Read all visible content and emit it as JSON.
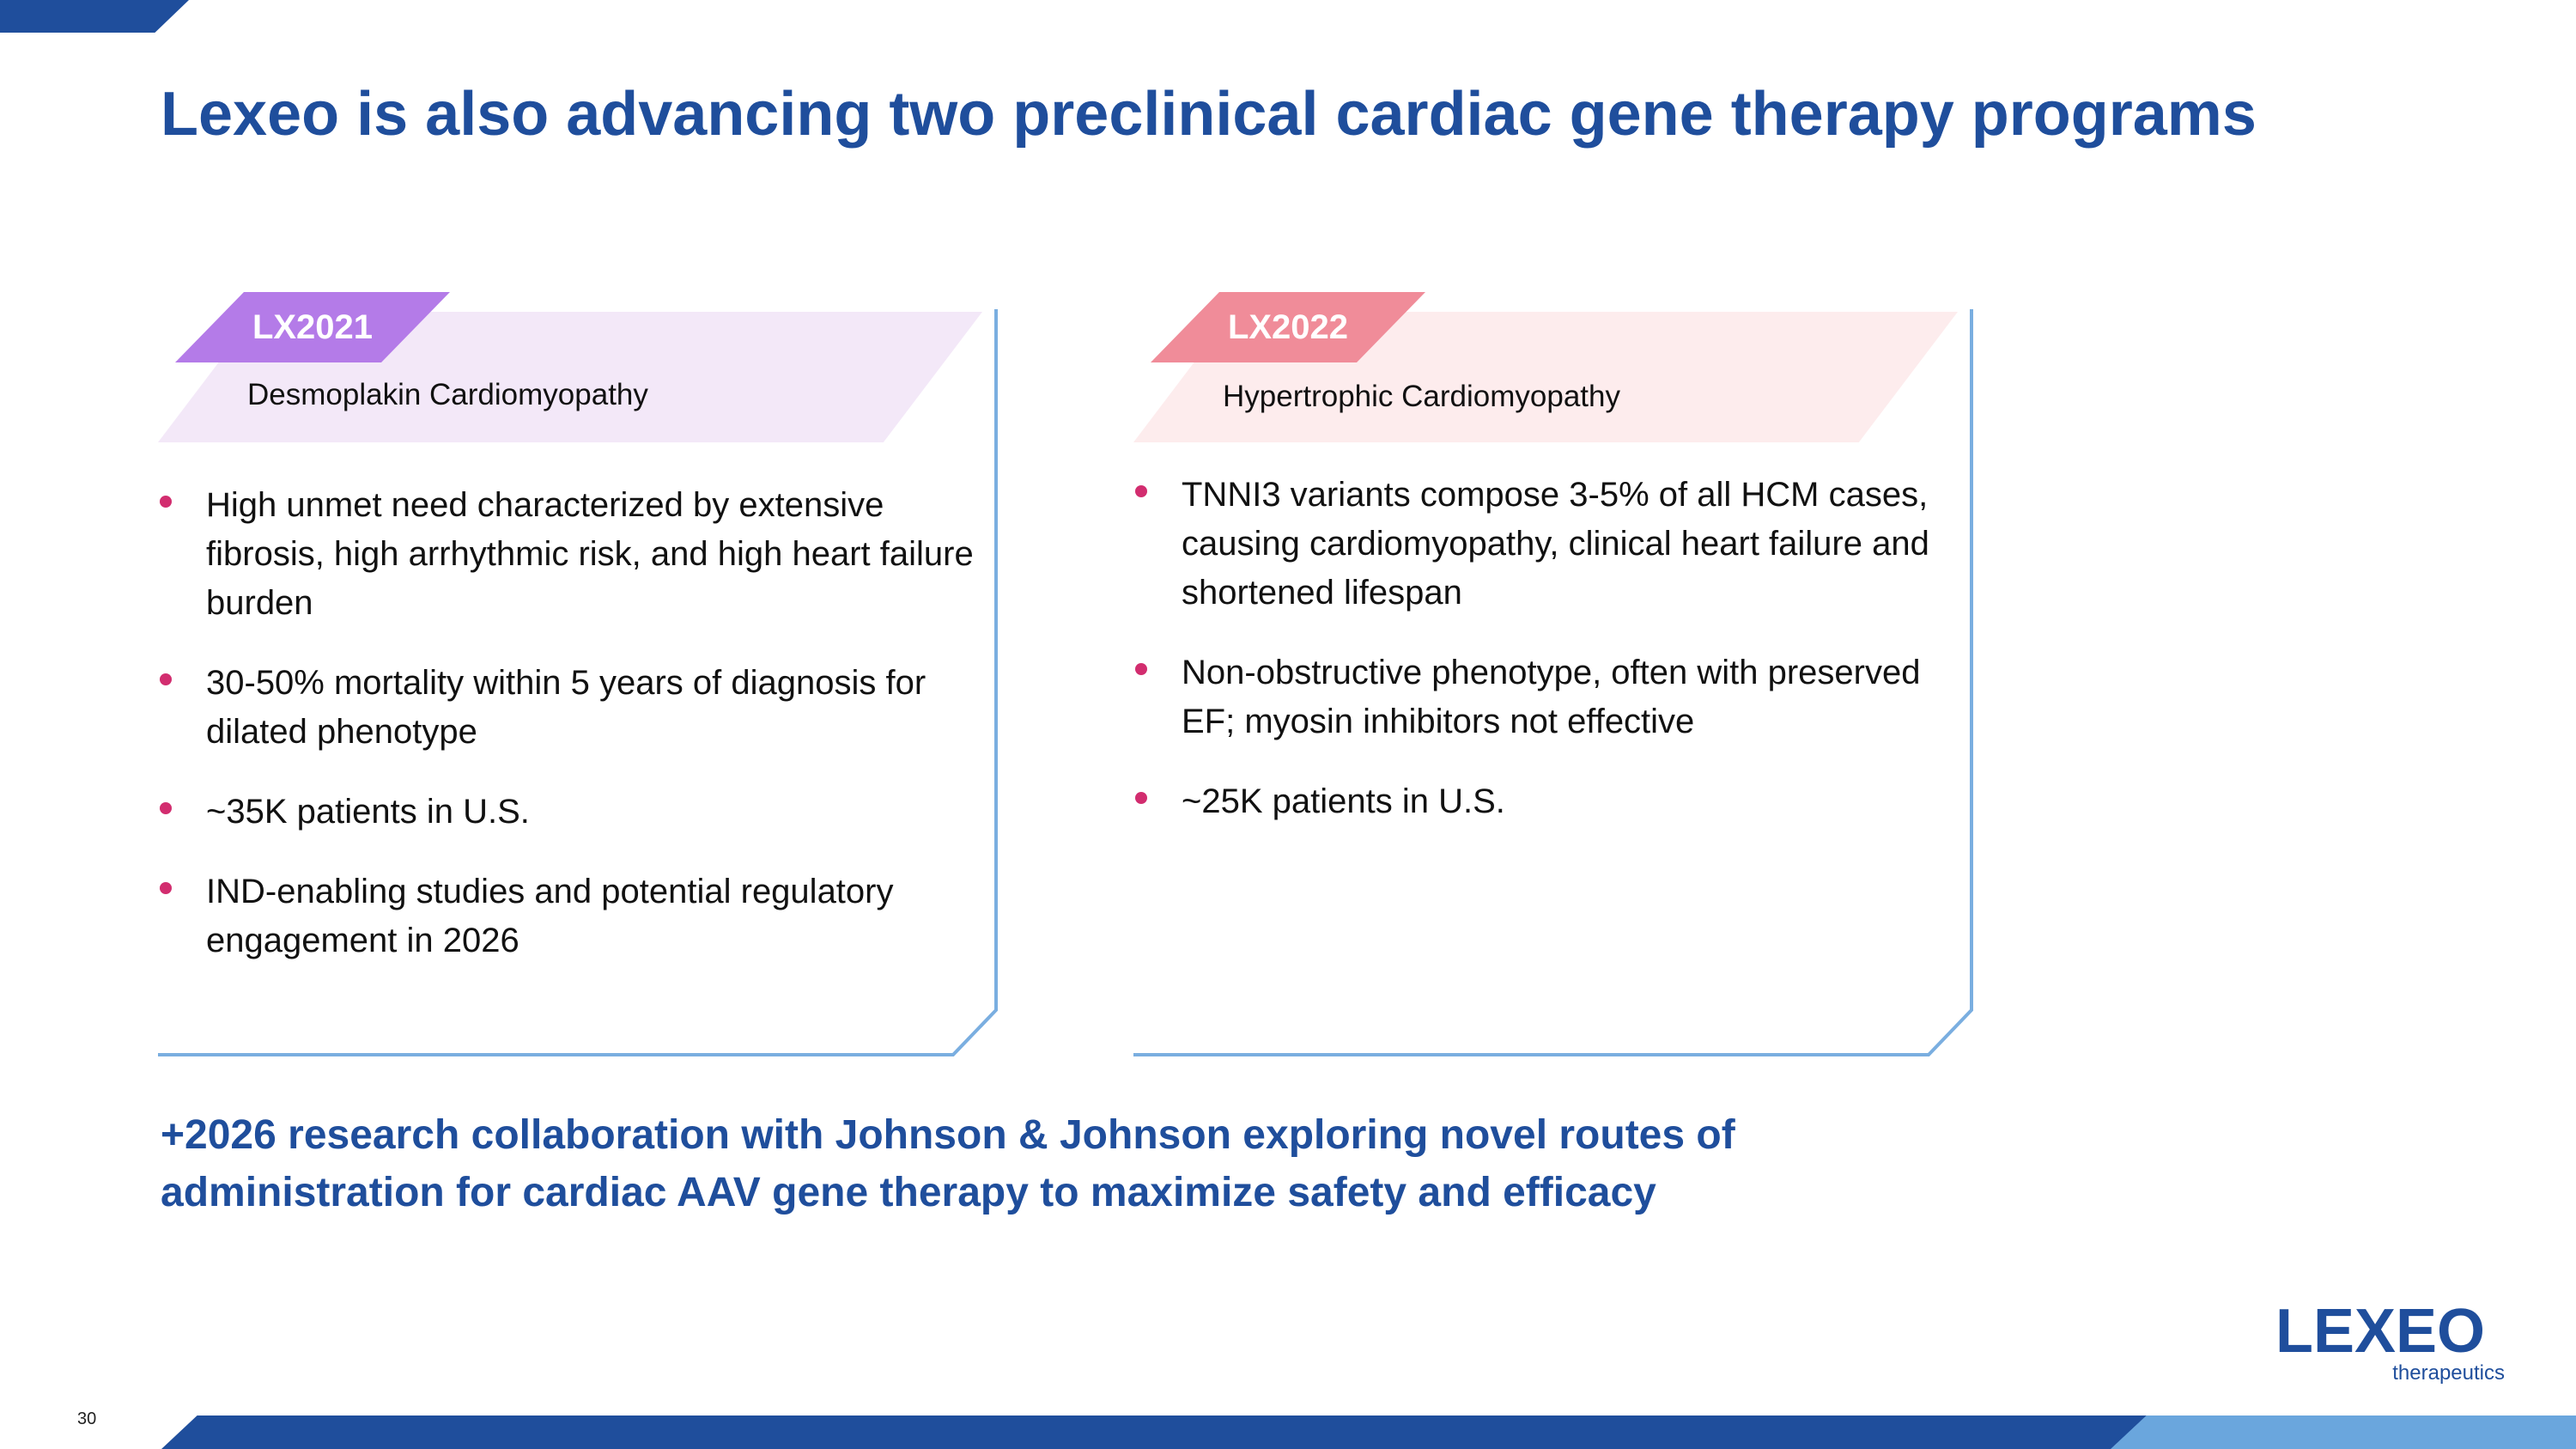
{
  "slide": {
    "title": "Lexeo is also advancing two preclinical cardiac gene therapy programs",
    "page_number": "30"
  },
  "programs": [
    {
      "tag": "LX2021",
      "indication": "Desmoplakin Cardiomyopathy",
      "tag_color": "#b47be8",
      "band_color": "#f3e8f8",
      "bullets": [
        "High unmet need characterized by extensive fibrosis, high arrhythmic risk, and high heart failure burden",
        "30-50% mortality within 5 years of diagnosis for dilated phenotype",
        "~35K patients in U.S.",
        "IND-enabling studies and potential regulatory engagement in 2026"
      ]
    },
    {
      "tag": "LX2022",
      "indication": "Hypertrophic Cardiomyopathy",
      "tag_color": "#f08c99",
      "band_color": "#fdeced",
      "bullets": [
        "TNNI3 variants compose 3-5% of all HCM cases, causing cardiomyopathy, clinical heart failure and shortened lifespan",
        "Non-obstructive phenotype, often with preserved EF; myosin inhibitors not effective",
        "~25K patients in U.S."
      ]
    }
  ],
  "collaboration_note": "+2026 research collaboration with Johnson & Johnson exploring novel routes of administration for cardiac AAV gene therapy to maximize safety and efficacy",
  "logo": {
    "wordmark": "LEXEO",
    "tagline": "therapeutics"
  },
  "colors": {
    "brand_navy": "#1f4e9c",
    "brand_light_blue": "#6aa6dd",
    "bullet_pink": "#d22d6f"
  },
  "icons": {
    "logo": "lexeo-logo"
  }
}
